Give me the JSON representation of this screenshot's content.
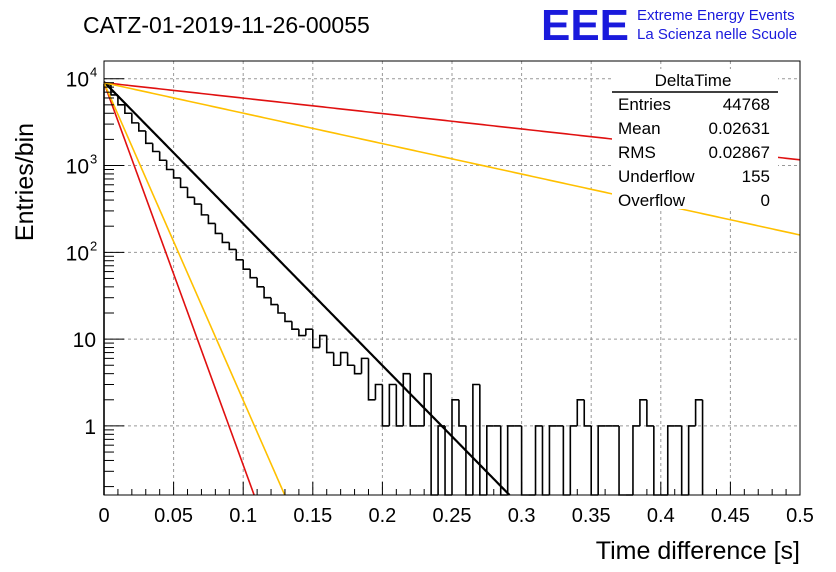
{
  "header": {
    "run_title": "CATZ-01-2019-11-26-00055",
    "logo_text": "EEE",
    "logo_line1": "Extreme Energy Events",
    "logo_line2": "La Scienza nelle Scuole"
  },
  "stats_box": {
    "name": "DeltaTime",
    "rows": [
      {
        "label": "Entries",
        "value": "44768"
      },
      {
        "label": "Mean",
        "value": "0.02631"
      },
      {
        "label": "RMS",
        "value": "0.02867"
      },
      {
        "label": "Underflow",
        "value": "155"
      },
      {
        "label": "Overflow",
        "value": "0"
      }
    ]
  },
  "colors": {
    "histogram": "#000000",
    "fit": "#000000",
    "red_curve": "#e01010",
    "orange_curve": "#ffc000",
    "logo": "#1a1adc",
    "grid": "#999999"
  },
  "chart_data": {
    "type": "line",
    "title": "",
    "xlabel": "Time difference [s]",
    "ylabel": "Entries/bin",
    "xlim": [
      0,
      0.5
    ],
    "ylim": [
      0.16,
      16000
    ],
    "yscale": "log",
    "grid": true,
    "x_ticks": [
      "0",
      "0.05",
      "0.1",
      "0.15",
      "0.2",
      "0.25",
      "0.3",
      "0.35",
      "0.4",
      "0.45",
      "0.5"
    ],
    "x_tick_values": [
      0,
      0.05,
      0.1,
      0.15,
      0.2,
      0.25,
      0.3,
      0.35,
      0.4,
      0.45,
      0.5
    ],
    "y_ticks": [
      {
        "value": 1,
        "base": "1",
        "exp": ""
      },
      {
        "value": 10,
        "base": "10",
        "exp": ""
      },
      {
        "value": 100,
        "base": "10",
        "exp": "2"
      },
      {
        "value": 1000,
        "base": "10",
        "exp": "3"
      },
      {
        "value": 10000,
        "base": "10",
        "exp": "4"
      }
    ],
    "histogram": {
      "bin_width": 0.005,
      "x_start": 0,
      "values": [
        8500,
        6500,
        5000,
        4000,
        3100,
        2500,
        1800,
        1450,
        1150,
        900,
        720,
        560,
        430,
        360,
        270,
        215,
        165,
        130,
        108,
        82,
        64,
        51,
        40,
        30,
        25,
        20,
        16,
        13,
        11,
        13,
        8,
        11,
        7,
        5,
        7,
        5,
        4,
        6,
        2,
        3,
        1,
        3,
        1,
        4,
        1,
        1,
        4,
        0,
        1,
        0,
        2,
        1,
        0,
        3,
        0,
        1,
        1,
        0,
        1,
        1,
        0,
        0,
        1,
        0,
        1,
        1,
        0,
        1,
        2,
        1,
        0,
        1,
        1,
        1,
        0,
        0,
        1,
        2,
        1,
        0,
        0,
        1,
        1,
        0,
        1,
        2
      ]
    },
    "curves": [
      {
        "color_key": "fit",
        "y0": 9200,
        "tau": 0.02658,
        "x_end": 0.5,
        "width": 2.2
      },
      {
        "color_key": "red_curve",
        "y0": 9000,
        "tau": 0.24438,
        "x_end": 0.5,
        "width": 1.6
      },
      {
        "color_key": "orange_curve",
        "y0": 9000,
        "tau": 0.12376,
        "x_end": 0.5,
        "width": 1.6
      },
      {
        "color_key": "red_curve",
        "y0": 9000,
        "tau": 0.00986,
        "x_end": 0.5,
        "width": 1.6
      },
      {
        "color_key": "orange_curve",
        "y0": 9000,
        "tau": 0.01187,
        "x_end": 0.5,
        "width": 1.6
      }
    ]
  }
}
